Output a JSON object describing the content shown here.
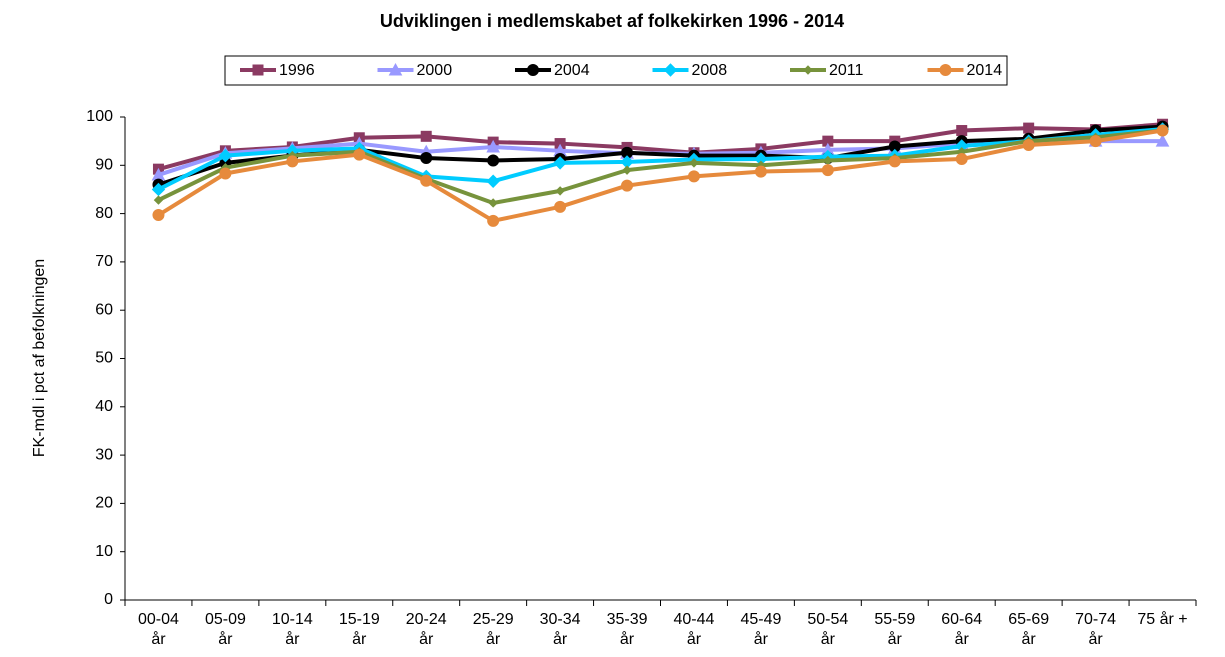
{
  "chart_data": {
    "type": "line",
    "title": "Udviklingen i medlemskabet af folkekirken 1996 - 2014",
    "y_label": "FK-mdl i pct af befolkningen",
    "categories": [
      "00-04\når",
      "05-09\når",
      "10-14\når",
      "15-19\når",
      "20-24\når",
      "25-29\når",
      "30-34\når",
      "35-39\når",
      "40-44\når",
      "45-49\når",
      "50-54\når",
      "55-59\når",
      "60-64\når",
      "65-69\når",
      "70-74\når",
      "75 år +"
    ],
    "series": [
      {
        "name": "1996",
        "color": "#8b3a62",
        "marker": "square",
        "values": [
          89.2,
          93,
          93.8,
          95.7,
          96,
          94.8,
          94.5,
          93.7,
          92.6,
          93.4,
          95,
          95,
          97.2,
          97.7,
          97.4,
          98.5
        ]
      },
      {
        "name": "2000",
        "color": "#9999ff",
        "marker": "triangle",
        "values": [
          88,
          92.5,
          93.5,
          94.5,
          92.8,
          93.8,
          93,
          92.5,
          92.4,
          92.6,
          93.2,
          93.5,
          94.5,
          95,
          95,
          95
        ]
      },
      {
        "name": "2004",
        "color": "#000000",
        "marker": "circle",
        "values": [
          86,
          90.5,
          92,
          93.2,
          91.5,
          91,
          91.3,
          92.6,
          92,
          92,
          91.5,
          93.9,
          95,
          95.5,
          97.2,
          98
        ]
      },
      {
        "name": "2008",
        "color": "#00ccff",
        "marker": "diamond",
        "values": [
          85,
          92,
          93,
          93.5,
          87.7,
          86.7,
          90.5,
          90.7,
          91.2,
          91.3,
          91.8,
          92,
          94,
          95,
          96.3,
          97.5
        ]
      },
      {
        "name": "2011",
        "color": "#77933c",
        "marker": "small-diamond",
        "values": [
          82.8,
          89.5,
          92,
          92.8,
          87.2,
          82.2,
          84.7,
          89,
          90.5,
          90,
          91,
          91.5,
          92.8,
          95,
          95.8,
          97.2
        ]
      },
      {
        "name": "2014",
        "color": "#e68a3c",
        "marker": "circle",
        "values": [
          79.7,
          88.3,
          90.8,
          92.2,
          86.8,
          78.5,
          81.4,
          85.8,
          87.7,
          88.7,
          89,
          90.8,
          91.3,
          94.2,
          95,
          97.2
        ]
      }
    ],
    "ylim": [
      0,
      100
    ],
    "yticks": [
      0,
      10,
      20,
      30,
      40,
      50,
      60,
      70,
      80,
      90,
      100
    ],
    "grid": false
  }
}
